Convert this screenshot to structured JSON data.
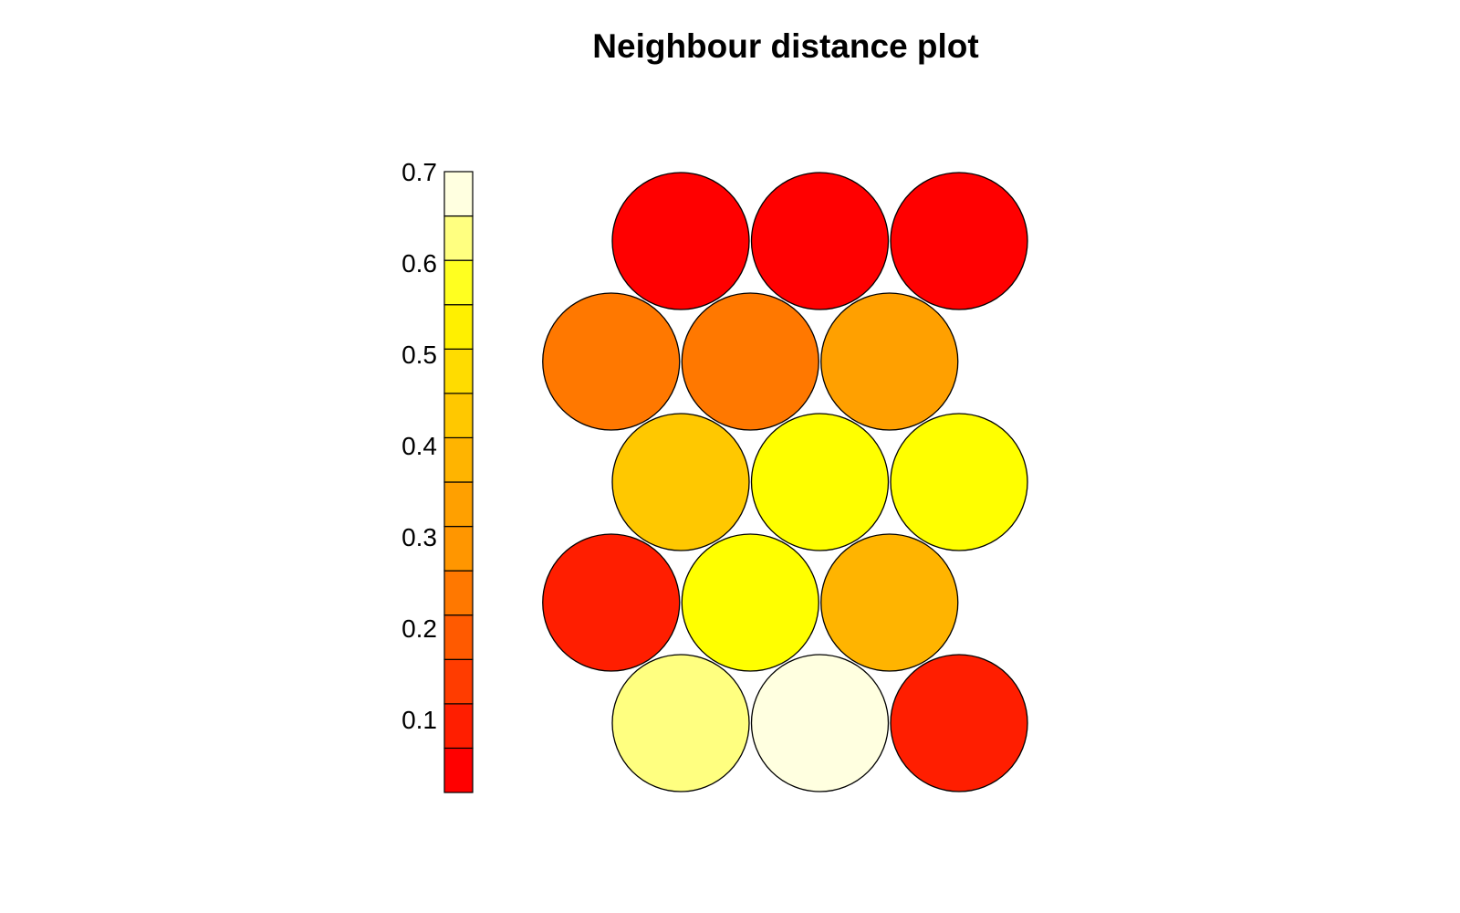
{
  "chart_data": {
    "type": "heatmap",
    "title": "Neighbour distance plot",
    "xlabel": "",
    "ylabel": "",
    "colorbar": {
      "range": [
        0.02,
        0.7
      ],
      "ticks": [
        0.1,
        0.2,
        0.3,
        0.4,
        0.5,
        0.6,
        0.7
      ],
      "tick_labels": [
        "0.1",
        "0.2",
        "0.3",
        "0.4",
        "0.5",
        "0.6",
        "0.7"
      ],
      "colors": [
        "#FF0000",
        "#FF1E00",
        "#FF3C00",
        "#FF5A00",
        "#FF7800",
        "#FF9600",
        "#FFA000",
        "#FFB400",
        "#FFC800",
        "#FFDC00",
        "#FFF000",
        "#FFFF20",
        "#FFFF80",
        "#FFFFE0"
      ]
    },
    "grid": {
      "rows": 5,
      "cols": 3,
      "layout": "hexagonal",
      "cells": [
        {
          "row": 1,
          "col": 1,
          "value": 0.03,
          "color": "#FF0000"
        },
        {
          "row": 1,
          "col": 2,
          "value": 0.03,
          "color": "#FF0000"
        },
        {
          "row": 1,
          "col": 3,
          "value": 0.03,
          "color": "#FF0000"
        },
        {
          "row": 2,
          "col": 1,
          "value": 0.28,
          "color": "#FF7800"
        },
        {
          "row": 2,
          "col": 2,
          "value": 0.28,
          "color": "#FF7800"
        },
        {
          "row": 2,
          "col": 3,
          "value": 0.35,
          "color": "#FFA000"
        },
        {
          "row": 3,
          "col": 1,
          "value": 0.42,
          "color": "#FFC800"
        },
        {
          "row": 3,
          "col": 2,
          "value": 0.55,
          "color": "#FFFF00"
        },
        {
          "row": 3,
          "col": 3,
          "value": 0.55,
          "color": "#FFFF00"
        },
        {
          "row": 4,
          "col": 1,
          "value": 0.06,
          "color": "#FF1E00"
        },
        {
          "row": 4,
          "col": 2,
          "value": 0.55,
          "color": "#FFFF00"
        },
        {
          "row": 4,
          "col": 3,
          "value": 0.38,
          "color": "#FFB400"
        },
        {
          "row": 5,
          "col": 1,
          "value": 0.65,
          "color": "#FFFF80"
        },
        {
          "row": 5,
          "col": 2,
          "value": 0.7,
          "color": "#FFFFE0"
        },
        {
          "row": 5,
          "col": 3,
          "value": 0.06,
          "color": "#FF1E00"
        }
      ]
    }
  }
}
